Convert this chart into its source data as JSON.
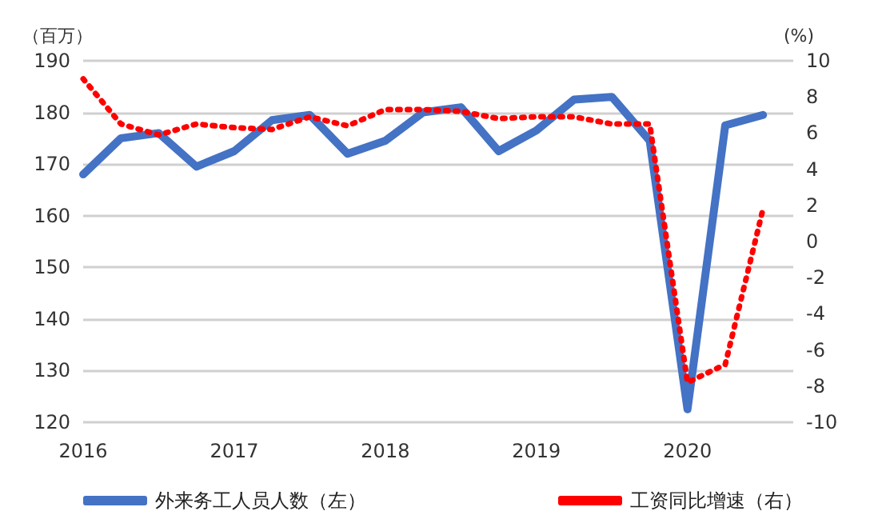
{
  "chart_data": {
    "type": "line",
    "ylabel": "（百万）",
    "y2label": "(%)",
    "x": [
      2016,
      2016.25,
      2016.5,
      2016.75,
      2017,
      2017.25,
      2017.5,
      2017.75,
      2018,
      2018.25,
      2018.5,
      2018.75,
      2019,
      2019.25,
      2019.5,
      2019.75,
      2020,
      2020.25,
      2020.5
    ],
    "series": [
      {
        "name": "外来务工人员人数（左）",
        "color": "#4472c4",
        "line_style": "solid",
        "values": [
          168,
          175,
          176,
          169.5,
          172.5,
          178.5,
          179.5,
          172,
          174.5,
          180,
          181,
          172.5,
          176.5,
          182.5,
          183,
          174.5,
          122.5,
          177.5,
          179.5
        ]
      },
      {
        "name": "工资同比增速（右）",
        "color": "#ff0000",
        "line_style": "dotted",
        "axis": "y2",
        "values": [
          9.0,
          6.5,
          5.9,
          6.5,
          6.3,
          6.2,
          6.9,
          6.4,
          7.3,
          7.3,
          7.2,
          6.8,
          6.9,
          6.9,
          6.5,
          6.5,
          -7.8,
          -6.8,
          1.8
        ]
      }
    ],
    "xlim": [
      2016,
      2020.7
    ],
    "xticks": [
      2016,
      2017,
      2018,
      2019,
      2020
    ],
    "ylim": [
      120,
      190
    ],
    "yticks": [
      120,
      130,
      140,
      150,
      160,
      170,
      180,
      190
    ],
    "y2lim": [
      -10,
      10
    ],
    "y2ticks": [
      -10,
      -8,
      -6,
      -4,
      -2,
      0,
      2,
      4,
      6,
      8,
      10
    ],
    "grid": "y",
    "legend": "bottom",
    "marker": "none"
  }
}
